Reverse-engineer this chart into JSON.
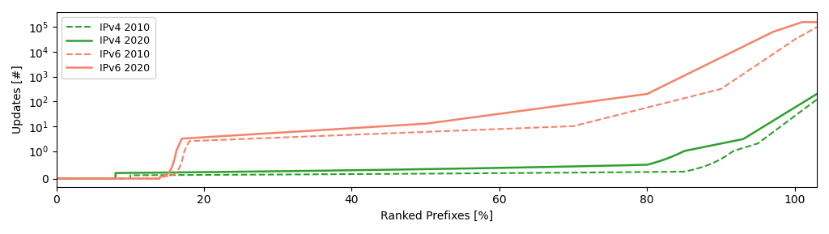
{
  "title": "",
  "xlabel": "Ranked Prefixes [%]",
  "ylabel": "Updates [#]",
  "lines": [
    {
      "label": "IPv4 2010",
      "color": "#2ca02c",
      "linestyle": "dashed",
      "lw": 1.5
    },
    {
      "label": "IPv4 2020",
      "color": "#2ca02c",
      "linestyle": "solid",
      "lw": 1.8
    },
    {
      "label": "IPv6 2010",
      "color": "#f4826a",
      "linestyle": "dashed",
      "lw": 1.5
    },
    {
      "label": "IPv6 2020",
      "color": "#f4826a",
      "linestyle": "solid",
      "lw": 1.8
    }
  ],
  "xlim": [
    0,
    103
  ],
  "linthresh": 1.0,
  "xticks": [
    0,
    20,
    40,
    60,
    80,
    100
  ],
  "legend_loc": "upper left",
  "figsize": [
    10.24,
    2.89
  ],
  "dpi": 100
}
